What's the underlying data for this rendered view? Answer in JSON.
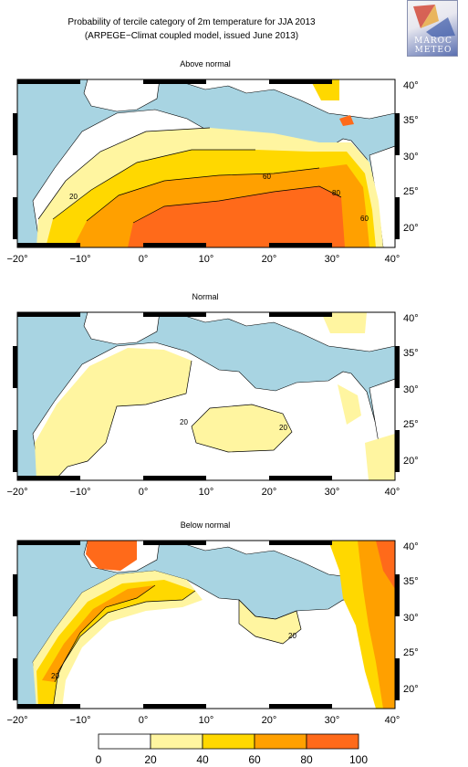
{
  "title": {
    "line1": "Probability of tercile category of 2m temperature for JJA 2013",
    "line2": "(ARPEGE−Climat coupled model, issued June 2013)"
  },
  "logo": {
    "line1": "MAROC",
    "line2": "METEO"
  },
  "axes": {
    "lon_ticks": [
      "−20°",
      "−10°",
      "0°",
      "10°",
      "20°",
      "30°",
      "40°"
    ],
    "lat_ticks": [
      "40°",
      "35°",
      "30°",
      "25°",
      "20°"
    ]
  },
  "panels": [
    {
      "title": "Above normal",
      "contour_labels": [
        "20",
        "60",
        "80",
        "60"
      ]
    },
    {
      "title": "Normal",
      "contour_labels": [
        "20",
        "20"
      ]
    },
    {
      "title": "Below normal",
      "contour_labels": [
        "20",
        "20"
      ]
    }
  ],
  "colorbar": {
    "labels": [
      "0",
      "20",
      "40",
      "60",
      "80",
      "100"
    ],
    "colors": [
      "#ffffff",
      "#fff5a0",
      "#ffd800",
      "#ffa000",
      "#ff6a1a"
    ]
  },
  "colors": {
    "sea": "#a8d4e2",
    "land": "#ffffff"
  }
}
